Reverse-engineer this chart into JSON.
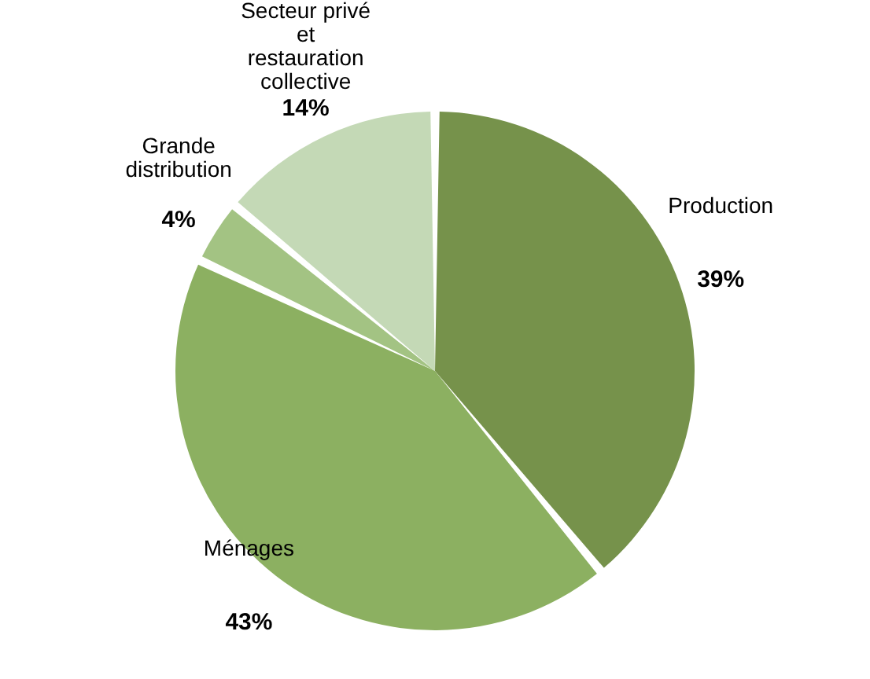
{
  "chart_data": {
    "type": "pie",
    "categories": [
      "Production",
      "Ménages",
      "Grande distribution",
      "Secteur privé et restauration collective"
    ],
    "values": [
      39,
      43,
      4,
      14
    ],
    "colors": [
      "#76924b",
      "#8cb061",
      "#a3c383",
      "#c4d9b6"
    ],
    "value_labels": [
      "39%",
      "43%",
      "4%",
      "14%"
    ]
  }
}
